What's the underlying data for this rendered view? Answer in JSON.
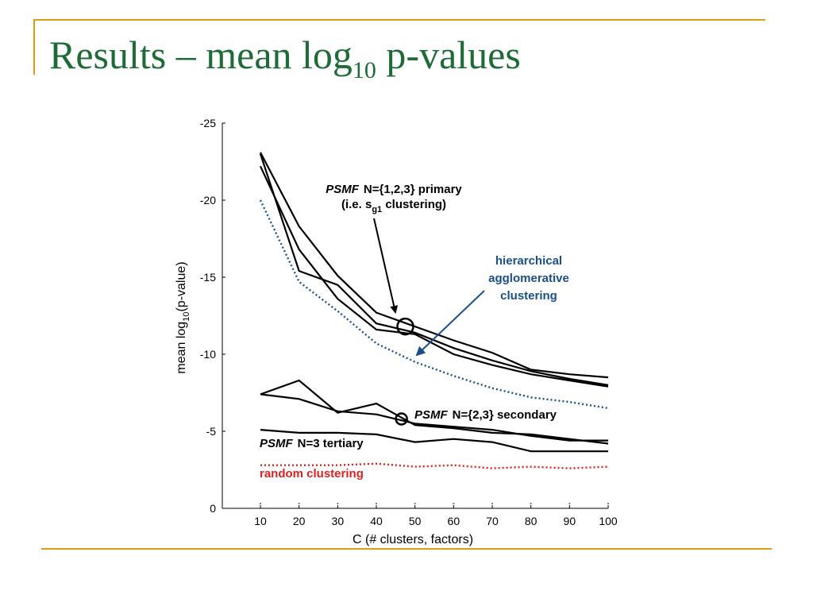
{
  "slide": {
    "title_main": "Results – mean log",
    "title_sub": "10",
    "title_end": " p-values"
  },
  "colors": {
    "frame": "#d4a017",
    "title": "#1f6b38",
    "psmf": "#000000",
    "hierarchical": "#1a4f8a",
    "random": "#e02020"
  },
  "chart_data": {
    "type": "line",
    "x": [
      10,
      20,
      30,
      40,
      50,
      60,
      70,
      80,
      90,
      100
    ],
    "xlabel": "C (# clusters, factors)",
    "ylabel_main": "mean log",
    "ylabel_sub": "10",
    "ylabel_end": "(p-value)",
    "xlim": [
      0,
      100
    ],
    "ylim": [
      0,
      -25
    ],
    "yticks": [
      -25,
      -20,
      -15,
      -10,
      -5,
      0
    ],
    "xticks": [
      10,
      20,
      30,
      40,
      50,
      60,
      70,
      80,
      90,
      100
    ],
    "series": [
      {
        "key": "psmf-primary-1",
        "style": "solid",
        "color": "#000000",
        "values": [
          -23.1,
          -18.3,
          -15.1,
          -12.7,
          -11.8,
          -10.9,
          -10.1,
          -9.0,
          -8.7,
          -8.5
        ]
      },
      {
        "key": "psmf-primary-2",
        "style": "solid",
        "color": "#000000",
        "values": [
          -23.0,
          -15.4,
          -14.5,
          -12.0,
          -11.4,
          -10.4,
          -9.6,
          -8.9,
          -8.4,
          -8.0
        ]
      },
      {
        "key": "psmf-primary-3",
        "style": "solid",
        "color": "#000000",
        "values": [
          -22.2,
          -16.8,
          -13.6,
          -11.6,
          -11.3,
          -10.0,
          -9.3,
          -8.7,
          -8.3,
          -7.9
        ]
      },
      {
        "key": "hierarchical",
        "style": "dotted",
        "color": "#1a4f8a",
        "values": [
          -20.0,
          -14.7,
          -12.8,
          -10.7,
          -9.5,
          -8.6,
          -7.8,
          -7.2,
          -6.9,
          -6.5
        ]
      },
      {
        "key": "psmf-secondary-1",
        "style": "solid",
        "color": "#000000",
        "values": [
          -7.4,
          -8.3,
          -6.2,
          -6.8,
          -5.4,
          -5.2,
          -4.9,
          -4.8,
          -4.5,
          -4.2
        ]
      },
      {
        "key": "psmf-secondary-2",
        "style": "solid",
        "color": "#000000",
        "values": [
          -7.4,
          -7.1,
          -6.3,
          -6.1,
          -5.5,
          -5.3,
          -5.1,
          -4.7,
          -4.4,
          -4.4
        ]
      },
      {
        "key": "psmf-tertiary",
        "style": "solid",
        "color": "#000000",
        "values": [
          -5.1,
          -4.9,
          -4.9,
          -4.8,
          -4.3,
          -4.5,
          -4.3,
          -3.7,
          -3.7,
          -3.7
        ]
      },
      {
        "key": "random",
        "style": "dotted",
        "color": "#e02020",
        "values": [
          -2.8,
          -2.8,
          -2.8,
          -2.9,
          -2.7,
          -2.8,
          -2.6,
          -2.7,
          -2.6,
          -2.7
        ]
      }
    ],
    "annotations": {
      "primary_name": "PSMF",
      "primary_rest": "N={1,2,3} primary",
      "primary_line2_a": "(i.e. s",
      "primary_line2_sub": "g1",
      "primary_line2_b": " clustering)",
      "hier_line1": "hierarchical",
      "hier_line2": "agglomerative",
      "hier_line3": "clustering",
      "secondary_name": "PSMF",
      "secondary_rest": "N={2,3} secondary",
      "tertiary_name": "PSMF",
      "tertiary_rest": "N=3 tertiary",
      "random_label": "random clustering"
    },
    "markers": [
      {
        "key": "primary-circle",
        "x": 47.5,
        "y": -11.8
      },
      {
        "key": "secondary-circle",
        "x": 46.5,
        "y": -5.8
      }
    ]
  }
}
